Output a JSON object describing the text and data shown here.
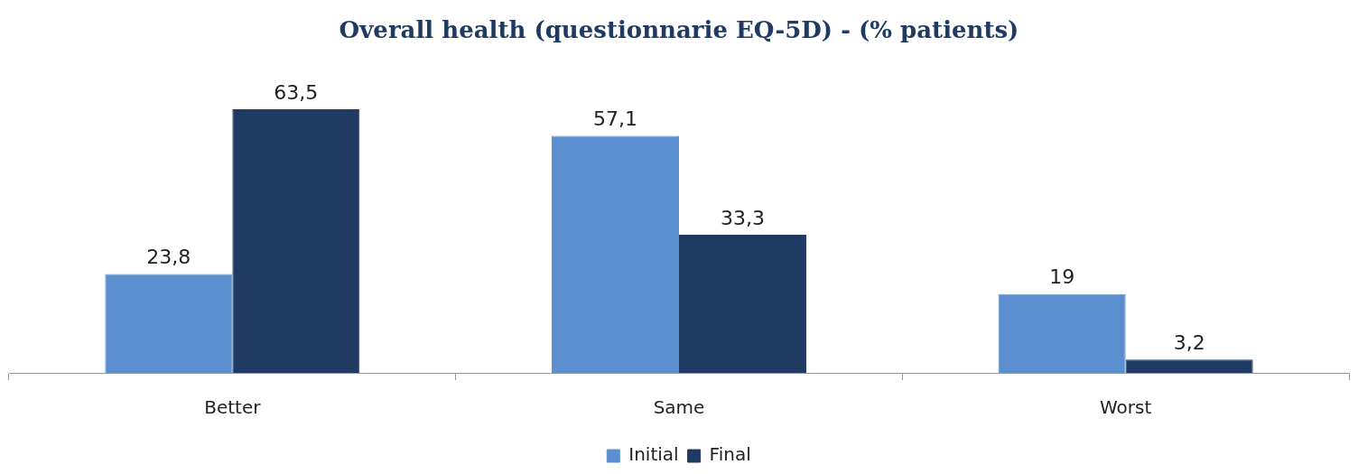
{
  "chart_data": {
    "type": "bar",
    "title": "Overall health (questionnarie EQ-5D) - (% patients)",
    "categories": [
      "Better",
      "Same",
      "Worst"
    ],
    "series": [
      {
        "name": "Initial",
        "color": "#5b8fcf",
        "values": [
          23.8,
          57.1,
          19
        ],
        "value_labels": [
          "23,8",
          "57,1",
          "19"
        ]
      },
      {
        "name": "Final",
        "color": "#1f3b63",
        "values": [
          63.5,
          33.3,
          3.2
        ],
        "value_labels": [
          "63,5",
          "33,3",
          "3,2"
        ]
      }
    ],
    "legend": "bottom",
    "grid": false
  }
}
